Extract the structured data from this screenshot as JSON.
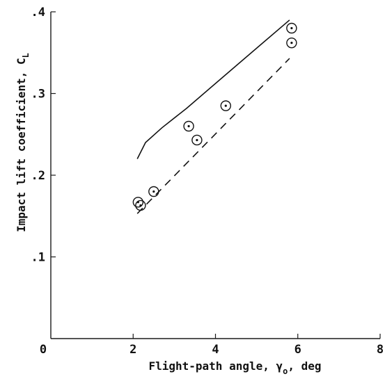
{
  "chart_data": {
    "type": "scatter",
    "title": "",
    "xlabel": "Flight-path angle, γ",
    "xlabel_sub": "o",
    "xlabel_suffix": ", deg",
    "ylabel": "Impact lift coefficient,",
    "ylabel_symbol": "C",
    "ylabel_sub": "L",
    "xlim": [
      0,
      8
    ],
    "ylim": [
      0,
      0.4
    ],
    "grid": false,
    "x_ticks": [
      {
        "value": 0,
        "label": "0"
      },
      {
        "value": 2,
        "label": "2"
      },
      {
        "value": 4,
        "label": "4"
      },
      {
        "value": 6,
        "label": "6"
      },
      {
        "value": 8,
        "label": "8"
      }
    ],
    "y_ticks": [
      {
        "value": 0.1,
        "label": ".1"
      },
      {
        "value": 0.2,
        "label": ".2"
      },
      {
        "value": 0.3,
        "label": ".3"
      },
      {
        "value": 0.4,
        "label": ".4"
      }
    ],
    "series": [
      {
        "kind": "points",
        "marker": "circle-dot",
        "points": [
          {
            "x": 2.12,
            "y": 0.167
          },
          {
            "x": 2.18,
            "y": 0.163
          },
          {
            "x": 2.5,
            "y": 0.18
          },
          {
            "x": 3.35,
            "y": 0.26
          },
          {
            "x": 3.55,
            "y": 0.243
          },
          {
            "x": 4.25,
            "y": 0.285
          },
          {
            "x": 5.85,
            "y": 0.38
          },
          {
            "x": 5.85,
            "y": 0.362
          }
        ]
      },
      {
        "kind": "line",
        "style": "solid",
        "points": [
          {
            "x": 2.1,
            "y": 0.22
          },
          {
            "x": 2.3,
            "y": 0.24
          },
          {
            "x": 2.7,
            "y": 0.258
          },
          {
            "x": 3.3,
            "y": 0.282
          },
          {
            "x": 4.5,
            "y": 0.334
          },
          {
            "x": 5.8,
            "y": 0.39
          }
        ]
      },
      {
        "kind": "line",
        "style": "dashed",
        "points": [
          {
            "x": 2.1,
            "y": 0.153
          },
          {
            "x": 5.8,
            "y": 0.343
          }
        ]
      }
    ]
  }
}
